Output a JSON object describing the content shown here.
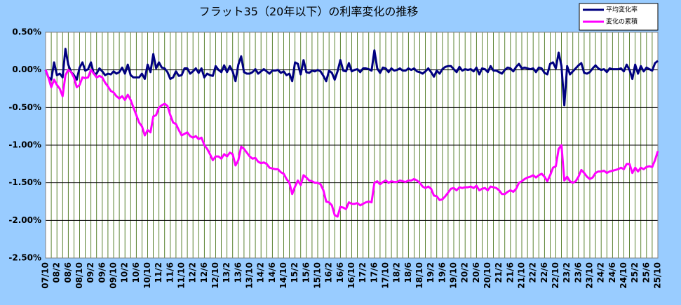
{
  "chart_data": {
    "type": "line",
    "title": "フラット35（20年以下）の利率変化の推移",
    "categories": [
      "07/10",
      null,
      null,
      null,
      "08/2",
      null,
      null,
      null,
      "08/6",
      null,
      null,
      null,
      "08/10",
      null,
      null,
      null,
      "09/2",
      null,
      null,
      null,
      "09/6",
      null,
      null,
      null,
      "09/10",
      null,
      null,
      null,
      "10/2",
      null,
      null,
      null,
      "10/6",
      null,
      null,
      null,
      "10/10",
      null,
      null,
      null,
      "11/2",
      null,
      null,
      null,
      "11/6",
      null,
      null,
      null,
      "11/10",
      null,
      null,
      null,
      "12/2",
      null,
      null,
      null,
      "12/6",
      null,
      null,
      null,
      "12/10",
      null,
      null,
      null,
      "13/2",
      null,
      null,
      null,
      "13/6",
      null,
      null,
      null,
      "13/10",
      null,
      null,
      null,
      "14/2",
      null,
      null,
      null,
      "14/6",
      null,
      null,
      null,
      "14/10",
      null,
      null,
      null,
      "15/2",
      null,
      null,
      null,
      "15/6",
      null,
      null,
      null,
      "15/10",
      null,
      null,
      null,
      "16/2",
      null,
      null,
      null,
      "16/6",
      null,
      null,
      null,
      "16/10",
      null,
      null,
      null,
      "17/2",
      null,
      null,
      null,
      "17/6",
      null,
      null,
      null,
      "17/10",
      null,
      null,
      null,
      "18/2",
      null,
      null,
      null,
      "18/6",
      null,
      null,
      null,
      "18/10",
      null,
      null,
      null,
      "19/2",
      null,
      null,
      null,
      "19/6",
      null,
      null,
      null,
      "19/10",
      null,
      null,
      null,
      "20/2",
      null,
      null,
      null,
      "20/6",
      null,
      null,
      null,
      "20/10",
      null,
      null,
      null,
      "21/2",
      null,
      null,
      null,
      "21/6",
      null,
      null,
      null,
      "21/10",
      null,
      null,
      null,
      "22/2",
      null,
      null,
      null,
      "22/6",
      null,
      null,
      null,
      "22/10",
      null,
      null,
      null,
      "23/2",
      null,
      null,
      null,
      "23/6",
      null,
      null,
      null,
      "23/10",
      null,
      null,
      null,
      "24/2",
      null,
      null,
      null,
      "24/6",
      null,
      null,
      null,
      "24/10",
      null,
      null,
      null,
      "25/2",
      null,
      null,
      null,
      "25/6",
      null,
      null,
      null,
      "25/10"
    ],
    "series": [
      {
        "name": "平均変化率",
        "color": "#000080",
        "values": [
          0,
          -0.1,
          -0.13,
          0.1,
          -0.07,
          -0.05,
          -0.1,
          0.28,
          0.07,
          -0.03,
          -0.07,
          -0.13,
          0.03,
          0.1,
          -0.01,
          0.01,
          0.1,
          -0.05,
          -0.05,
          0.02,
          -0.02,
          -0.07,
          -0.05,
          -0.06,
          -0.02,
          -0.05,
          -0.03,
          0.03,
          -0.05,
          0.07,
          -0.07,
          -0.1,
          -0.1,
          -0.1,
          -0.05,
          -0.12,
          0.07,
          -0.03,
          0.21,
          0.02,
          0.1,
          0.03,
          0.02,
          -0.03,
          -0.12,
          -0.1,
          -0.02,
          -0.08,
          -0.07,
          0.02,
          0.02,
          -0.05,
          -0.02,
          0.02,
          -0.04,
          0.02,
          -0.1,
          -0.05,
          -0.07,
          -0.08,
          0.05,
          0,
          -0.03,
          0.06,
          -0.03,
          0.05,
          -0.02,
          -0.15,
          0.07,
          0.18,
          -0.03,
          -0.05,
          -0.05,
          -0.03,
          0.01,
          -0.05,
          -0.02,
          0.01,
          -0.02,
          -0.05,
          -0.01,
          -0.01,
          0,
          -0.04,
          -0.02,
          -0.07,
          -0.05,
          -0.15,
          0.1,
          0.08,
          -0.06,
          0.13,
          -0.03,
          -0.04,
          -0.01,
          -0.02,
          0,
          -0.02,
          -0.08,
          -0.15,
          -0.01,
          -0.04,
          -0.13,
          -0.02,
          0.13,
          -0.01,
          -0.02,
          0.09,
          -0.02,
          0,
          0.01,
          -0.03,
          0.02,
          0.02,
          0.01,
          -0.01,
          0.26,
          0.02,
          -0.04,
          0.03,
          0.02,
          -0.03,
          0.02,
          -0.01,
          0,
          0.02,
          -0.01,
          -0.01,
          0.02,
          0,
          0.02,
          -0.02,
          -0.03,
          -0.05,
          -0.02,
          0.02,
          -0.03,
          -0.09,
          -0.01,
          -0.05,
          0.01,
          0.04,
          0.05,
          0.05,
          0.01,
          -0.03,
          0.04,
          -0.01,
          0.01,
          0,
          0.01,
          -0.02,
          0.03,
          -0.06,
          0.02,
          0.01,
          -0.03,
          0.05,
          -0.01,
          -0.01,
          -0.03,
          -0.05,
          0,
          0.03,
          0.02,
          -0.02,
          0.04,
          0.08,
          0.02,
          0.03,
          0.02,
          0.01,
          0.02,
          -0.03,
          0.03,
          0.02,
          -0.04,
          -0.06,
          0.08,
          0.1,
          0.02,
          0.23,
          0.05,
          -0.47,
          0.05,
          -0.06,
          -0.02,
          0.02,
          0.06,
          0.09,
          -0.04,
          -0.05,
          -0.03,
          0.02,
          0.06,
          0.02,
          0,
          0.01,
          -0.03,
          0.02,
          0.01,
          0.01,
          0.01,
          0.02,
          -0.02,
          0.07,
          0,
          -0.12,
          0.07,
          -0.05,
          0.05,
          -0.02,
          0.03,
          0.01,
          -0.01,
          0.09,
          0.12
        ]
      },
      {
        "name": "変化の累積",
        "color": "#ff00ff",
        "values": [
          0,
          -0.1,
          -0.23,
          -0.13,
          -0.2,
          -0.25,
          -0.35,
          -0.07,
          0.0,
          -0.03,
          -0.1,
          -0.23,
          -0.2,
          -0.1,
          -0.11,
          -0.1,
          0.0,
          -0.05,
          -0.1,
          -0.08,
          -0.1,
          -0.17,
          -0.22,
          -0.28,
          -0.3,
          -0.35,
          -0.38,
          -0.35,
          -0.4,
          -0.33,
          -0.4,
          -0.5,
          -0.6,
          -0.7,
          -0.75,
          -0.87,
          -0.8,
          -0.83,
          -0.62,
          -0.6,
          -0.5,
          -0.47,
          -0.45,
          -0.48,
          -0.6,
          -0.7,
          -0.72,
          -0.8,
          -0.87,
          -0.85,
          -0.83,
          -0.88,
          -0.9,
          -0.88,
          -0.92,
          -0.9,
          -1.0,
          -1.05,
          -1.12,
          -1.2,
          -1.15,
          -1.15,
          -1.18,
          -1.12,
          -1.15,
          -1.1,
          -1.12,
          -1.27,
          -1.2,
          -1.02,
          -1.05,
          -1.1,
          -1.15,
          -1.18,
          -1.17,
          -1.22,
          -1.24,
          -1.23,
          -1.25,
          -1.3,
          -1.31,
          -1.32,
          -1.32,
          -1.36,
          -1.38,
          -1.45,
          -1.5,
          -1.65,
          -1.55,
          -1.47,
          -1.53,
          -1.4,
          -1.43,
          -1.47,
          -1.48,
          -1.5,
          -1.5,
          -1.52,
          -1.6,
          -1.75,
          -1.76,
          -1.8,
          -1.93,
          -1.95,
          -1.82,
          -1.83,
          -1.85,
          -1.76,
          -1.78,
          -1.78,
          -1.77,
          -1.8,
          -1.78,
          -1.76,
          -1.75,
          -1.76,
          -1.5,
          -1.48,
          -1.52,
          -1.49,
          -1.47,
          -1.5,
          -1.48,
          -1.49,
          -1.49,
          -1.47,
          -1.48,
          -1.49,
          -1.47,
          -1.47,
          -1.45,
          -1.47,
          -1.5,
          -1.55,
          -1.57,
          -1.55,
          -1.58,
          -1.67,
          -1.68,
          -1.73,
          -1.72,
          -1.68,
          -1.63,
          -1.58,
          -1.57,
          -1.6,
          -1.56,
          -1.57,
          -1.56,
          -1.56,
          -1.55,
          -1.57,
          -1.54,
          -1.6,
          -1.58,
          -1.57,
          -1.6,
          -1.55,
          -1.56,
          -1.57,
          -1.6,
          -1.65,
          -1.65,
          -1.62,
          -1.6,
          -1.62,
          -1.58,
          -1.5,
          -1.48,
          -1.45,
          -1.43,
          -1.42,
          -1.4,
          -1.43,
          -1.4,
          -1.38,
          -1.42,
          -1.48,
          -1.4,
          -1.3,
          -1.28,
          -1.05,
          -1.0,
          -1.47,
          -1.42,
          -1.48,
          -1.5,
          -1.48,
          -1.42,
          -1.33,
          -1.37,
          -1.42,
          -1.45,
          -1.43,
          -1.37,
          -1.35,
          -1.35,
          -1.34,
          -1.37,
          -1.35,
          -1.34,
          -1.33,
          -1.32,
          -1.3,
          -1.32,
          -1.25,
          -1.25,
          -1.37,
          -1.3,
          -1.35,
          -1.3,
          -1.32,
          -1.29,
          -1.28,
          -1.29,
          -1.2,
          -1.08
        ]
      }
    ],
    "ylim": [
      -2.5,
      0.5
    ],
    "yticks": [
      {
        "value": 0.5,
        "label": "0.50%"
      },
      {
        "value": 0,
        "label": "0.00%"
      },
      {
        "value": -0.5,
        "label": "-0.50%"
      },
      {
        "value": -1,
        "label": "-1.00%"
      },
      {
        "value": -1.5,
        "label": "-1.50%"
      },
      {
        "value": -2,
        "label": "-2.00%"
      },
      {
        "value": -2.5,
        "label": "-2.50%"
      }
    ],
    "grid": true,
    "legend": "top-right"
  }
}
